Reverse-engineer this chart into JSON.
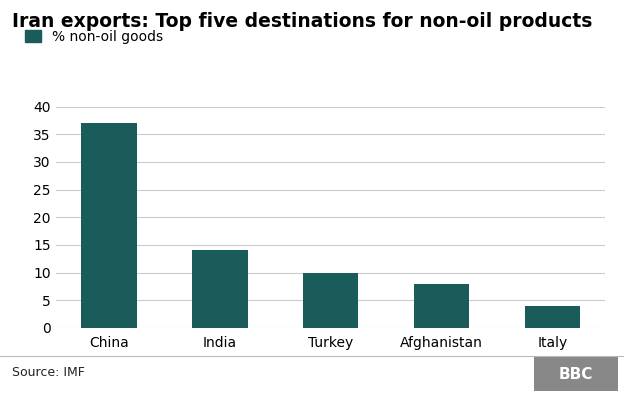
{
  "title": "Iran exports: Top five destinations for non-oil products",
  "legend_label": "% non-oil goods",
  "categories": [
    "China",
    "India",
    "Turkey",
    "Afghanistan",
    "Italy"
  ],
  "values": [
    37,
    14,
    10,
    8,
    4
  ],
  "bar_color": "#1a5c5a",
  "ylim": [
    0,
    40
  ],
  "yticks": [
    0,
    5,
    10,
    15,
    20,
    25,
    30,
    35,
    40
  ],
  "source_text": "Source: IMF",
  "bbc_text": "BBC",
  "background_color": "#ffffff",
  "grid_color": "#cccccc",
  "title_fontsize": 13.5,
  "legend_fontsize": 10,
  "tick_fontsize": 10,
  "source_fontsize": 9,
  "bbc_fontsize": 10
}
